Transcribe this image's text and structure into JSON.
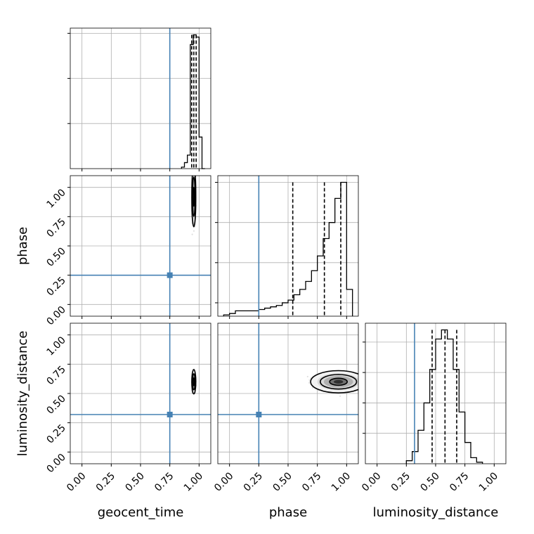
{
  "chart_data": {
    "type": "corner",
    "parameters": [
      "geocent_time",
      "phase",
      "luminosity_distance"
    ],
    "axis_labels": {
      "x": [
        "geocent_time",
        "phase",
        "luminosity_distance"
      ],
      "y": [
        "phase",
        "luminosity_distance"
      ]
    },
    "tick_values": [
      0.0,
      0.25,
      0.5,
      0.75,
      1.0
    ],
    "tick_labels": [
      "0.00",
      "0.25",
      "0.50",
      "0.75",
      "1.00"
    ],
    "axis_range": [
      -0.1,
      1.1
    ],
    "grid": true,
    "truths": {
      "geocent_time": 0.75,
      "phase": 0.25,
      "luminosity_distance": 0.32
    },
    "colors": {
      "truth": "#4682b4",
      "histogram": "#000000",
      "grid": "#b0b0b0",
      "points": "#000000"
    },
    "marginals": {
      "geocent_time": {
        "bin_edges": [
          0.85,
          0.875,
          0.9,
          0.925,
          0.95,
          0.975,
          1.0,
          1.025,
          1.05
        ],
        "counts": [
          2,
          8,
          18,
          165,
          178,
          175,
          42,
          0
        ],
        "quantiles": [
          0.937,
          0.955,
          0.975
        ],
        "y_ticks": [
          60,
          120,
          180
        ]
      },
      "phase": {
        "bin_edges": [
          -0.05,
          0.0,
          0.05,
          0.1,
          0.15,
          0.2,
          0.25,
          0.3,
          0.35,
          0.4,
          0.45,
          0.5,
          0.55,
          0.6,
          0.65,
          0.7,
          0.75,
          0.8,
          0.85,
          0.9,
          0.95,
          1.0,
          1.05
        ],
        "counts": [
          1,
          2,
          4,
          4,
          4,
          4,
          5,
          6,
          7,
          8,
          10,
          12,
          16,
          20,
          26,
          34,
          45,
          58,
          70,
          88,
          100,
          20
        ],
        "quantiles": [
          0.54,
          0.81,
          0.95
        ],
        "y_ticks": [
          10,
          40,
          70,
          100
        ]
      },
      "luminosity_distance": {
        "bin_edges": [
          0.25,
          0.3,
          0.35,
          0.4,
          0.45,
          0.5,
          0.55,
          0.6,
          0.65,
          0.7,
          0.75,
          0.8,
          0.85,
          0.9
        ],
        "counts": [
          2,
          8,
          22,
          40,
          62,
          82,
          88,
          82,
          62,
          34,
          14,
          4,
          1
        ],
        "quantiles": [
          0.47,
          0.58,
          0.68
        ],
        "y_ticks": [
          20,
          40,
          60,
          80
        ]
      }
    },
    "joint_2d": [
      {
        "x_param": "geocent_time",
        "y_param": "phase",
        "center": [
          0.955,
          0.92
        ],
        "spread": [
          0.018,
          0.27
        ],
        "levels": [
          "inner",
          "middle",
          "outer"
        ]
      },
      {
        "x_param": "geocent_time",
        "y_param": "luminosity_distance",
        "center": [
          0.955,
          0.6
        ],
        "spread": [
          0.018,
          0.11
        ],
        "levels": [
          "inner",
          "middle",
          "outer"
        ]
      },
      {
        "x_param": "phase",
        "y_param": "luminosity_distance",
        "center": [
          0.93,
          0.6
        ],
        "spread": [
          0.25,
          0.1
        ],
        "levels": [
          "inner",
          "middle",
          "outer"
        ]
      }
    ]
  }
}
